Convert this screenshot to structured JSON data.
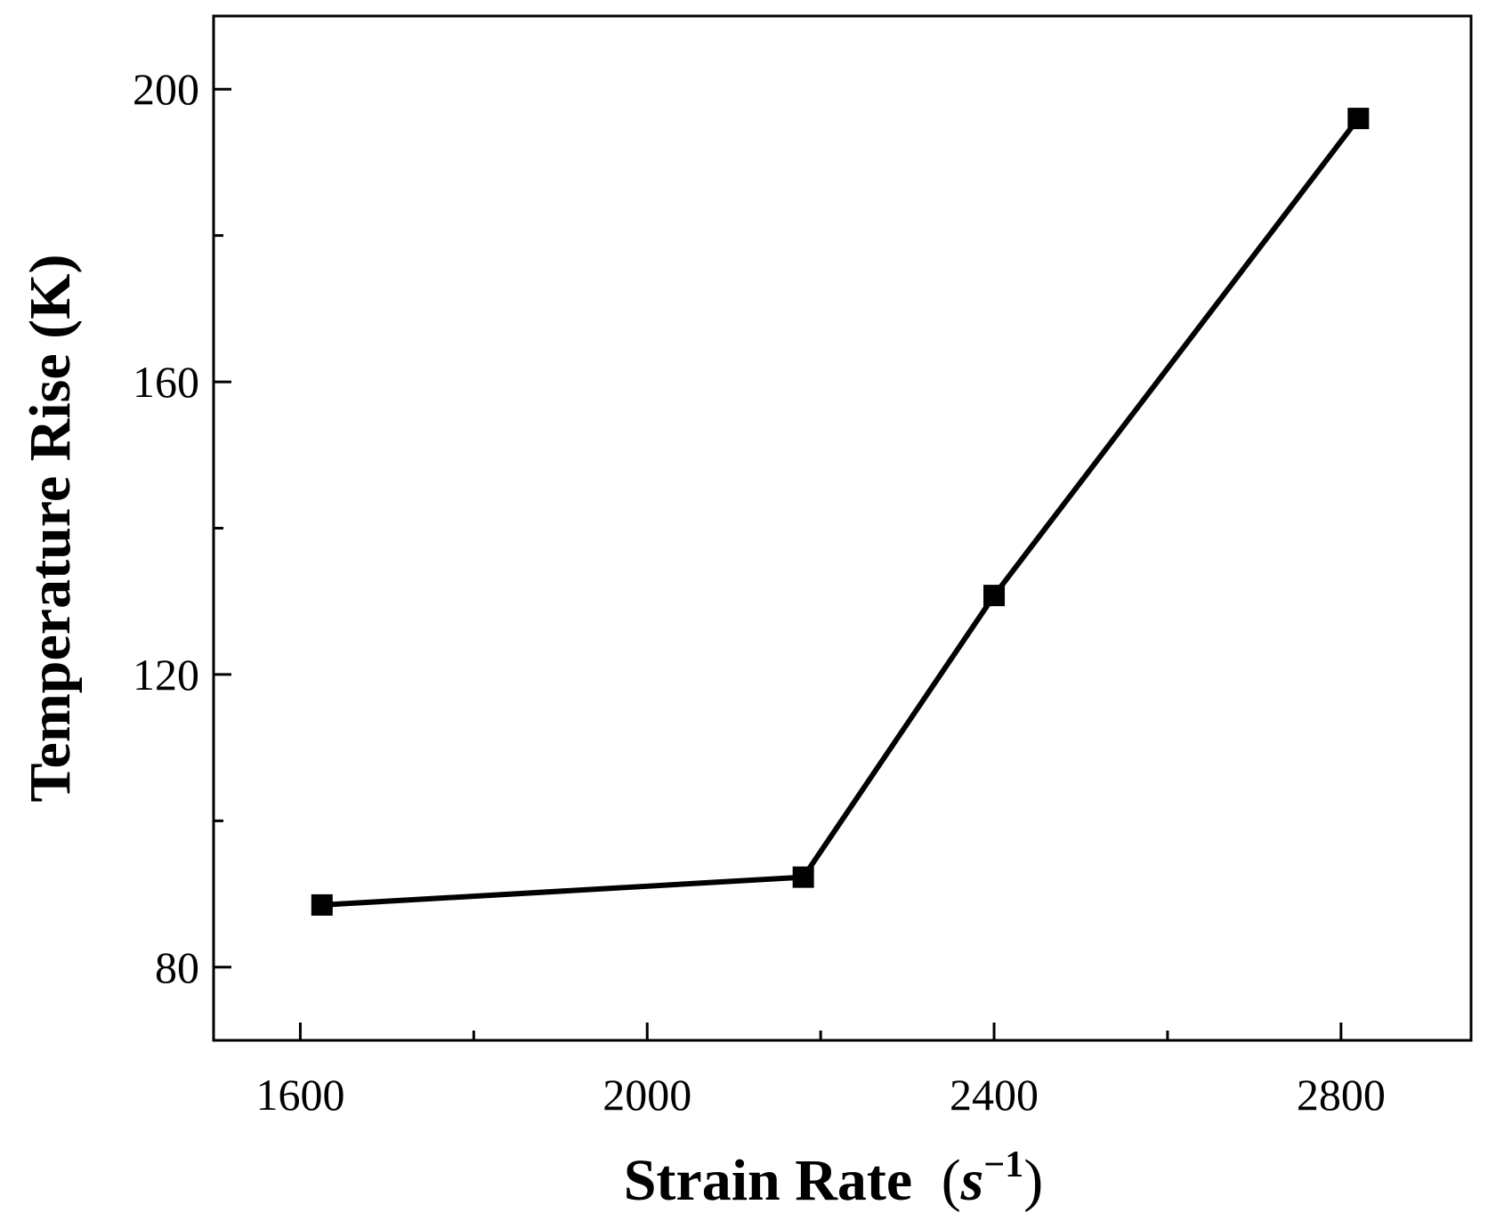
{
  "chart_data": {
    "type": "line",
    "title": "",
    "xlabel": "Strain Rate",
    "xlabel_unit_base": "s",
    "xlabel_unit_exp": "−1",
    "ylabel": "Temperature Rise (K)",
    "xlim": [
      1500,
      2950
    ],
    "ylim": [
      70,
      210
    ],
    "x_ticks": [
      1600,
      2000,
      2400,
      2800
    ],
    "x_tick_labels": [
      "1600",
      "2000",
      "2400",
      "2800"
    ],
    "x_minor_ticks": [
      1800,
      2200,
      2600
    ],
    "y_ticks": [
      80,
      120,
      160,
      200
    ],
    "y_tick_labels": [
      "80",
      "120",
      "160",
      "200"
    ],
    "y_minor_ticks": [
      100,
      140,
      180
    ],
    "grid": false,
    "legend": false,
    "marker": "square",
    "line_color": "#000000",
    "series": [
      {
        "x": [
          1625,
          2180,
          2400,
          2820
        ],
        "y": [
          88.5,
          92.3,
          130.8,
          196
        ]
      }
    ]
  }
}
